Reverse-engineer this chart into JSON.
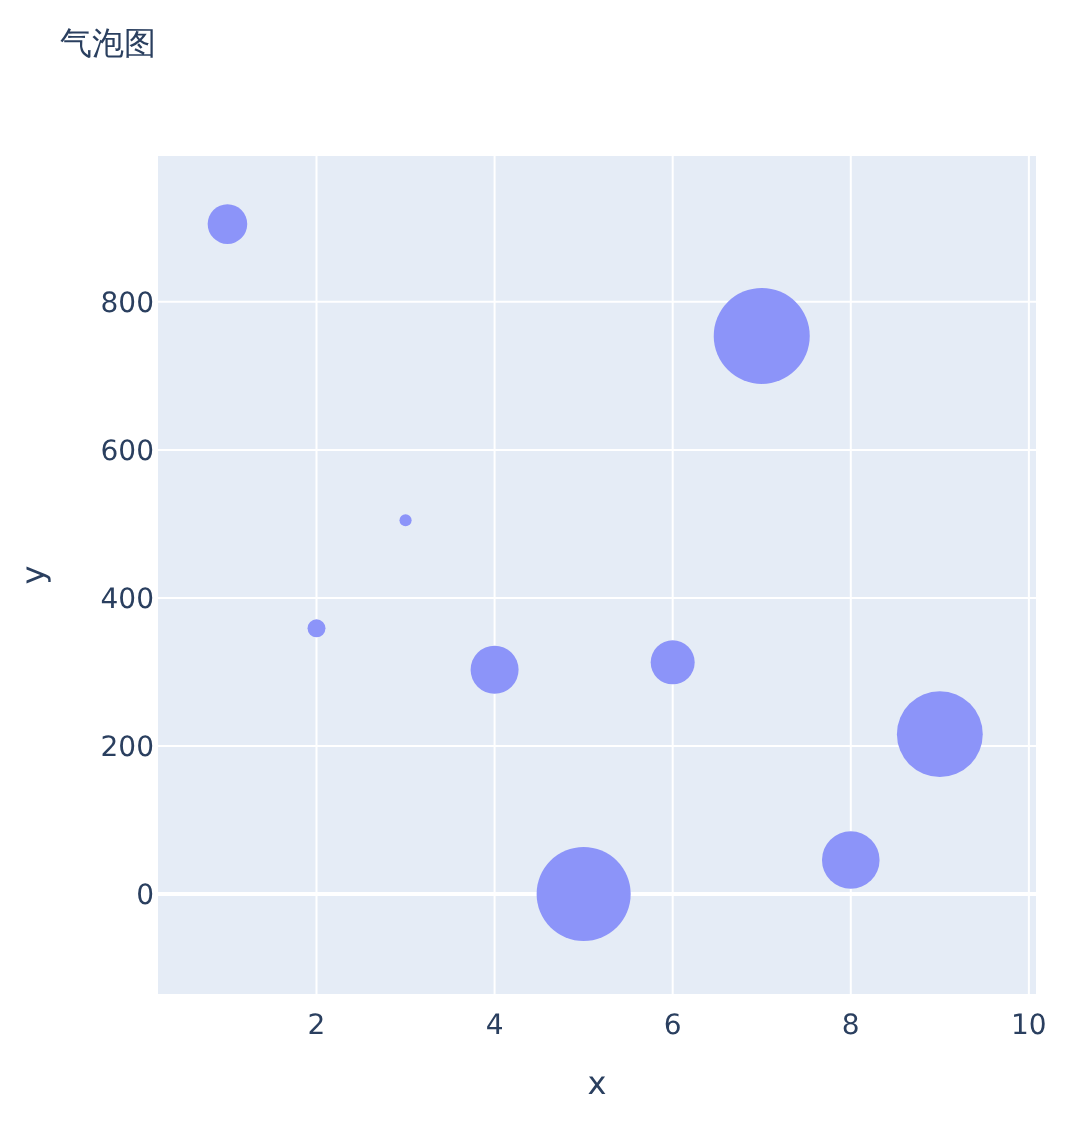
{
  "chart_data": {
    "type": "bubble",
    "title": "气泡图",
    "xlabel": "x",
    "ylabel": "y",
    "x": [
      1,
      2,
      3,
      4,
      5,
      6,
      7,
      8,
      9
    ],
    "values": [
      905,
      359,
      505,
      303,
      0,
      313,
      754,
      46,
      216
    ],
    "sizes": [
      0.17,
      0.035,
      0.016,
      0.25,
      0.96,
      0.21,
      1,
      0.36,
      0.8
    ],
    "color": "#8c94f9",
    "xlim": [
      0.22,
      10.08
    ],
    "ylim": [
      -135,
      997
    ],
    "xticks": [
      2,
      4,
      6,
      8,
      10
    ],
    "yticks": [
      0,
      200,
      400,
      600,
      800
    ],
    "grid": true
  }
}
